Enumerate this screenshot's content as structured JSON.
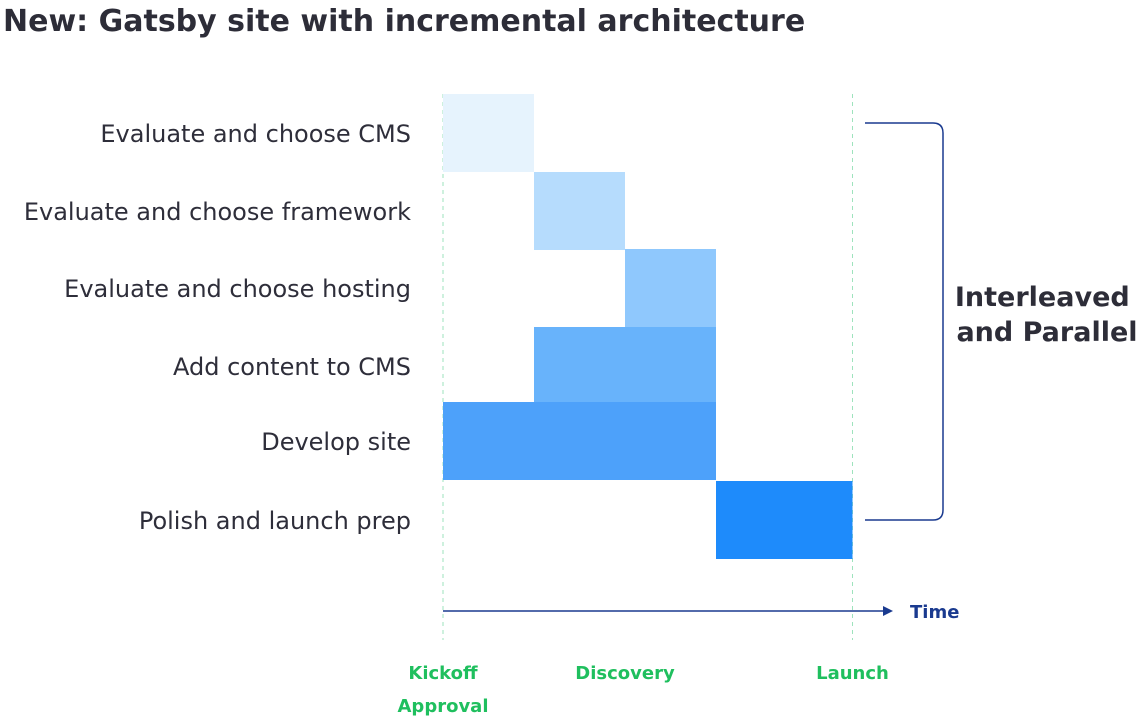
{
  "title": "New: Gatsby site with incremental architecture",
  "chart_data": {
    "type": "gantt",
    "title": "New: Gatsby site with incremental architecture",
    "x_axis_label": "Time",
    "x_range": [
      0,
      4.5
    ],
    "milestones": [
      {
        "label_lines": [
          "Kickoff",
          "Approval"
        ],
        "at": 0
      },
      {
        "label_lines": [
          "Discovery"
        ],
        "at": 2
      },
      {
        "label_lines": [
          "Launch"
        ],
        "at": 4.5
      }
    ],
    "tasks": [
      {
        "name": "Evaluate and choose CMS",
        "start": 0,
        "end": 1,
        "color": "#e6f3fd"
      },
      {
        "name": "Evaluate and choose framework",
        "start": 1,
        "end": 2,
        "color": "#b6dcfd"
      },
      {
        "name": "Evaluate and choose hosting",
        "start": 2,
        "end": 3,
        "color": "#8fc8fd"
      },
      {
        "name": "Add content to CMS",
        "start": 1,
        "end": 3,
        "color": "#68b3fb"
      },
      {
        "name": "Develop site",
        "start": 0,
        "end": 3,
        "color": "#4da1fa"
      },
      {
        "name": "Polish and launch prep",
        "start": 3,
        "end": 4.5,
        "color": "#1e8bfb"
      }
    ],
    "annotation": {
      "lines": [
        "Interleaved",
        "and Parallel"
      ]
    },
    "colors": {
      "milestone": "#1fbf5e",
      "axis": "#1a3a8f",
      "guide_line": "#9ee3bd",
      "text": "#2d2d38"
    }
  }
}
